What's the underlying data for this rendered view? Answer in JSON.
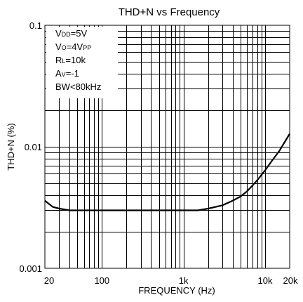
{
  "chart_data": {
    "type": "line",
    "title": "THD+N vs Frequency",
    "xlabel": "FREQUENCY (Hz)",
    "ylabel": "THD+N (%)",
    "x_scale": "log",
    "y_scale": "log",
    "xlim": [
      20,
      20000
    ],
    "ylim": [
      0.001,
      0.1
    ],
    "x_ticks": [
      {
        "value": 20,
        "label": "20"
      },
      {
        "value": 100,
        "label": "100"
      },
      {
        "value": 1000,
        "label": "1k"
      },
      {
        "value": 10000,
        "label": "10k"
      },
      {
        "value": 20000,
        "label": "20k"
      }
    ],
    "y_ticks": [
      {
        "value": 0.001,
        "label": "0.001"
      },
      {
        "value": 0.01,
        "label": "0.01"
      },
      {
        "value": 0.1,
        "label": "0.1"
      }
    ],
    "grid": true,
    "conditions": [
      {
        "main": "V",
        "sub": "DD",
        "rest": "=5V"
      },
      {
        "main": "V",
        "sub": "O",
        "rest": "=4V",
        "sub2": "PP"
      },
      {
        "main": "R",
        "sub": "L",
        "rest": "=10k"
      },
      {
        "main": "A",
        "sub": "V",
        "rest": "=-1"
      },
      {
        "main": "BW<80kHz",
        "sub": "",
        "rest": ""
      }
    ],
    "series": [
      {
        "color": "#000000",
        "x": [
          20,
          25,
          30,
          40,
          50,
          70,
          100,
          200,
          500,
          1000,
          1500,
          2000,
          3000,
          4000,
          5000,
          6000,
          7000,
          8000,
          10000,
          12000,
          15000,
          20000
        ],
        "y": [
          0.0036,
          0.0032,
          0.0031,
          0.003,
          0.003,
          0.003,
          0.003,
          0.003,
          0.003,
          0.003,
          0.003,
          0.0031,
          0.0033,
          0.0036,
          0.0039,
          0.0043,
          0.0048,
          0.0053,
          0.0064,
          0.0076,
          0.0093,
          0.0128
        ]
      }
    ]
  }
}
